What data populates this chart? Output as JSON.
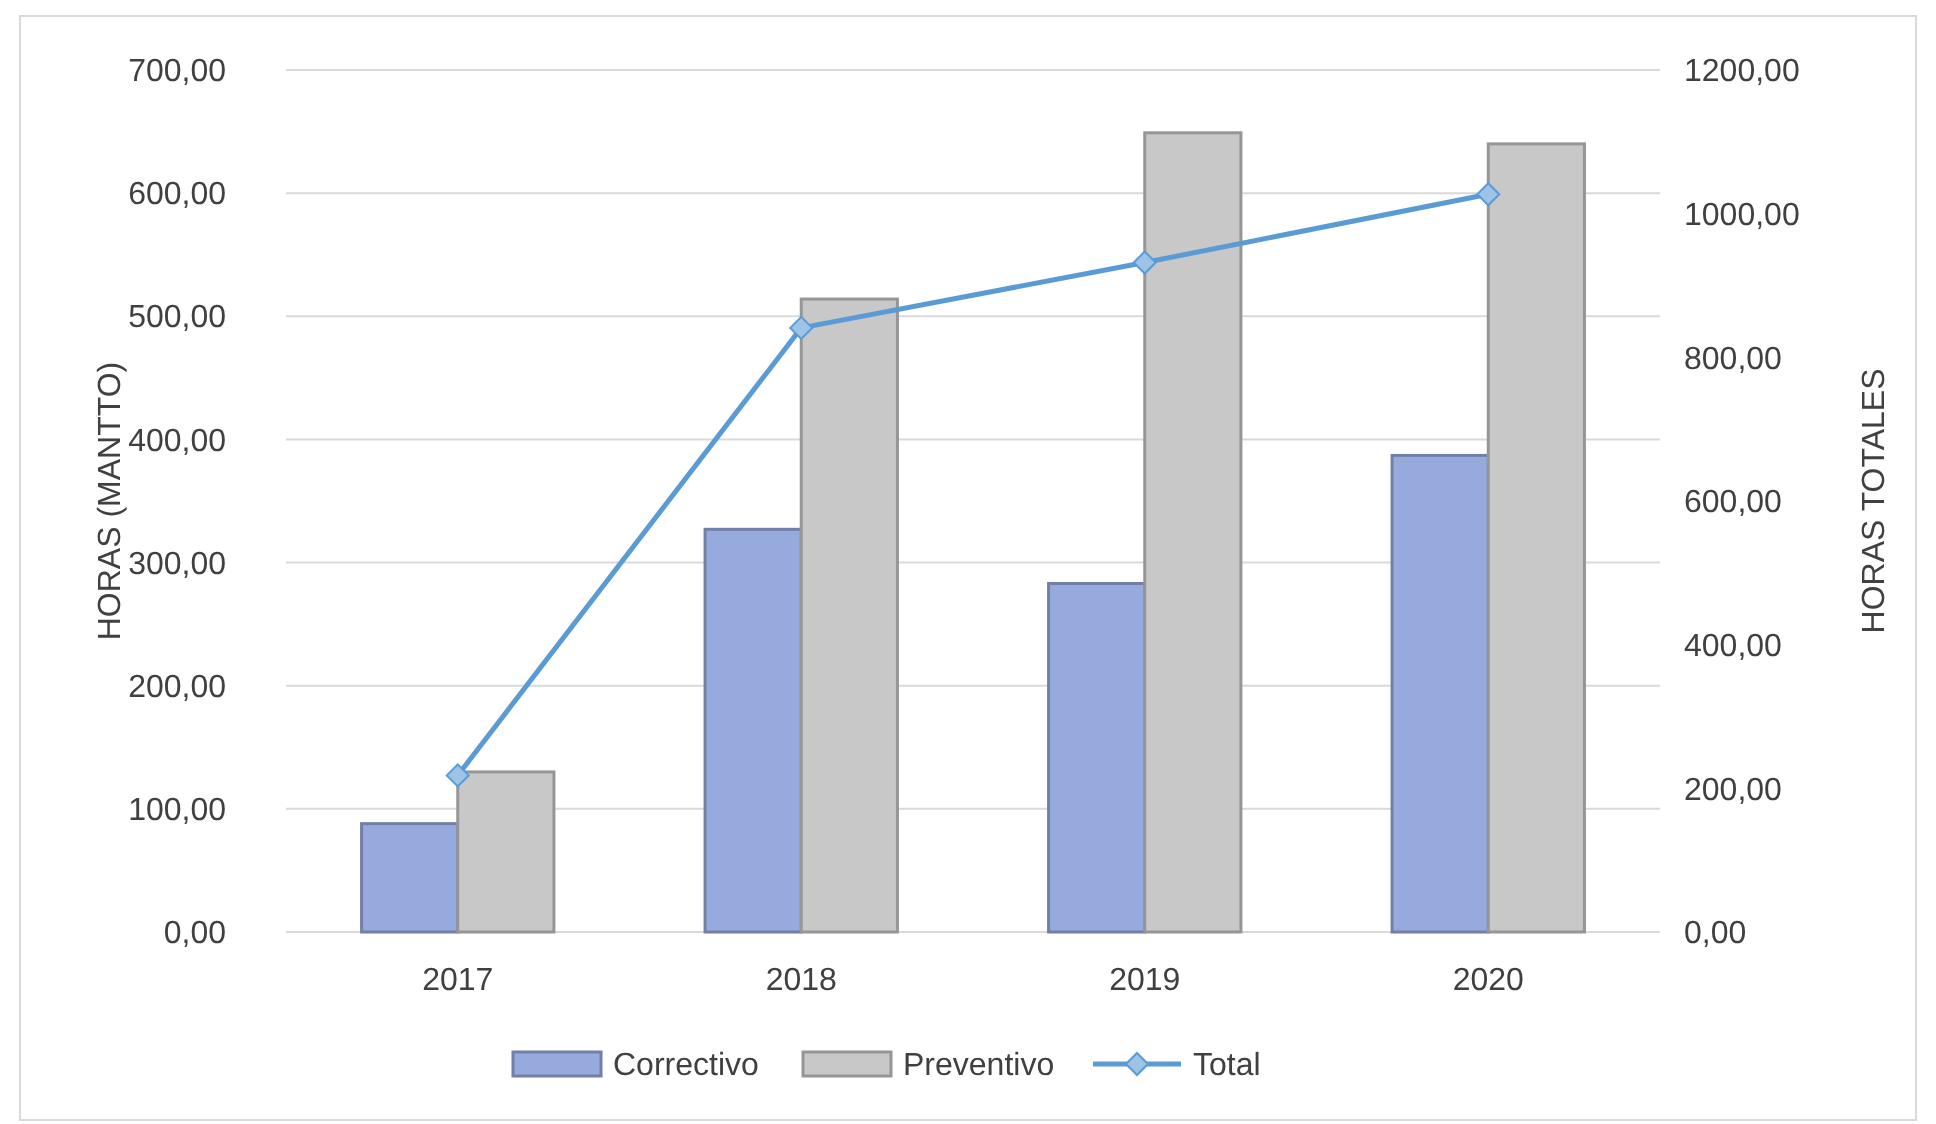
{
  "chart_data": {
    "type": "bar",
    "categories": [
      "2017",
      "2018",
      "2019",
      "2020"
    ],
    "ylabel": "HORAS  (MANTTO)",
    "y2label": "HORAS  TOTALES",
    "series": [
      {
        "name": "Correctivo",
        "color": "#97aade",
        "values": [
          88,
          327,
          283,
          387
        ]
      },
      {
        "name": "Preventivo",
        "color": "#c8c8c8",
        "values": [
          130,
          514,
          649,
          640
        ]
      },
      {
        "name": "Total",
        "type": "line",
        "axis": "y2",
        "color": "#5b9bd5",
        "marker": "diamond",
        "values": [
          218,
          841,
          932,
          1027
        ]
      }
    ],
    "ylim": [
      0,
      700
    ],
    "yticks": [
      {
        "value": 0,
        "label": "0,00"
      },
      {
        "value": 100,
        "label": "100,00"
      },
      {
        "value": 200,
        "label": "200,00"
      },
      {
        "value": 300,
        "label": "300,00"
      },
      {
        "value": 400,
        "label": "400,00"
      },
      {
        "value": 500,
        "label": "500,00"
      },
      {
        "value": 600,
        "label": "600,00"
      },
      {
        "value": 700,
        "label": "700,00"
      }
    ],
    "y2lim": [
      0,
      1200
    ],
    "y2ticks": [
      {
        "value": 0,
        "label": "0,00"
      },
      {
        "value": 200,
        "label": "200,00"
      },
      {
        "value": 400,
        "label": "400,00"
      },
      {
        "value": 600,
        "label": "600,00"
      },
      {
        "value": 800,
        "label": "800,00"
      },
      {
        "value": 1000,
        "label": "1000,00"
      },
      {
        "value": 1200,
        "label": "1200,00"
      }
    ],
    "grid": "y",
    "legend": "bottom"
  }
}
